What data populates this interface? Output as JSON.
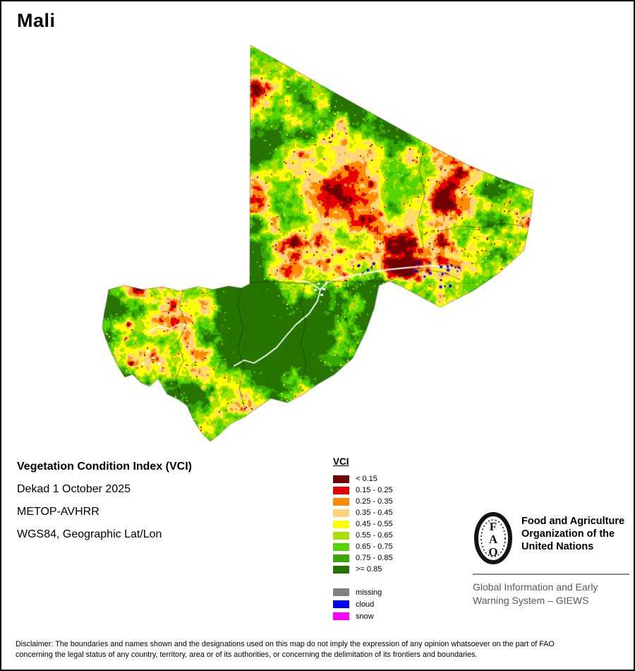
{
  "title": "Mali",
  "info": {
    "line1": "Vegetation Condition Index (VCI)",
    "line2": "Dekad 1 October 2025",
    "line3": "METOP-AVHRR",
    "line4": "WGS84, Geographic Lat/Lon"
  },
  "legend": {
    "title": "VCI",
    "classes": [
      {
        "label": "< 0.15",
        "color": "#730000"
      },
      {
        "label": "0.15 - 0.25",
        "color": "#E60000"
      },
      {
        "label": "0.25 - 0.35",
        "color": "#FF8C00"
      },
      {
        "label": "0.35 - 0.45",
        "color": "#FFD37F"
      },
      {
        "label": "0.45 - 0.55",
        "color": "#FFFF00"
      },
      {
        "label": "0.55 - 0.65",
        "color": "#A9E000"
      },
      {
        "label": "0.65 - 0.75",
        "color": "#55D400"
      },
      {
        "label": "0.75 - 0.85",
        "color": "#38A800"
      },
      {
        "label": ">= 0.85",
        "color": "#267300"
      }
    ],
    "extra": [
      {
        "label": "missing",
        "color": "#808080"
      },
      {
        "label": "cloud",
        "color": "#0000FF"
      },
      {
        "label": "snow",
        "color": "#FF00FF"
      }
    ]
  },
  "fao": {
    "acronym_letters": [
      "F",
      "A",
      "O"
    ],
    "org_lines": [
      "Food and Agriculture",
      "Organization of the",
      "United Nations"
    ],
    "giews_lines": [
      "Global Information and Early",
      "Warning System – GIEWS"
    ]
  },
  "disclaimer_lines": [
    "Disclaimer: The boundaries and names shown and the designations used on this map do not imply the expression of any opinion whatsoever on the part of FAO",
    "concerning the legal status of any country, territory, area or of its authorities, or concerning the delimitation of its frontiers and boundaries."
  ],
  "map": {
    "thresholds": [
      0.15,
      0.25,
      0.35,
      0.45,
      0.55,
      0.65,
      0.75,
      0.85
    ],
    "overlay": {
      "cloud": "#0000FF",
      "river": "#FFFFFF",
      "boundary": "rgba(30,30,30,0.65)"
    }
  }
}
